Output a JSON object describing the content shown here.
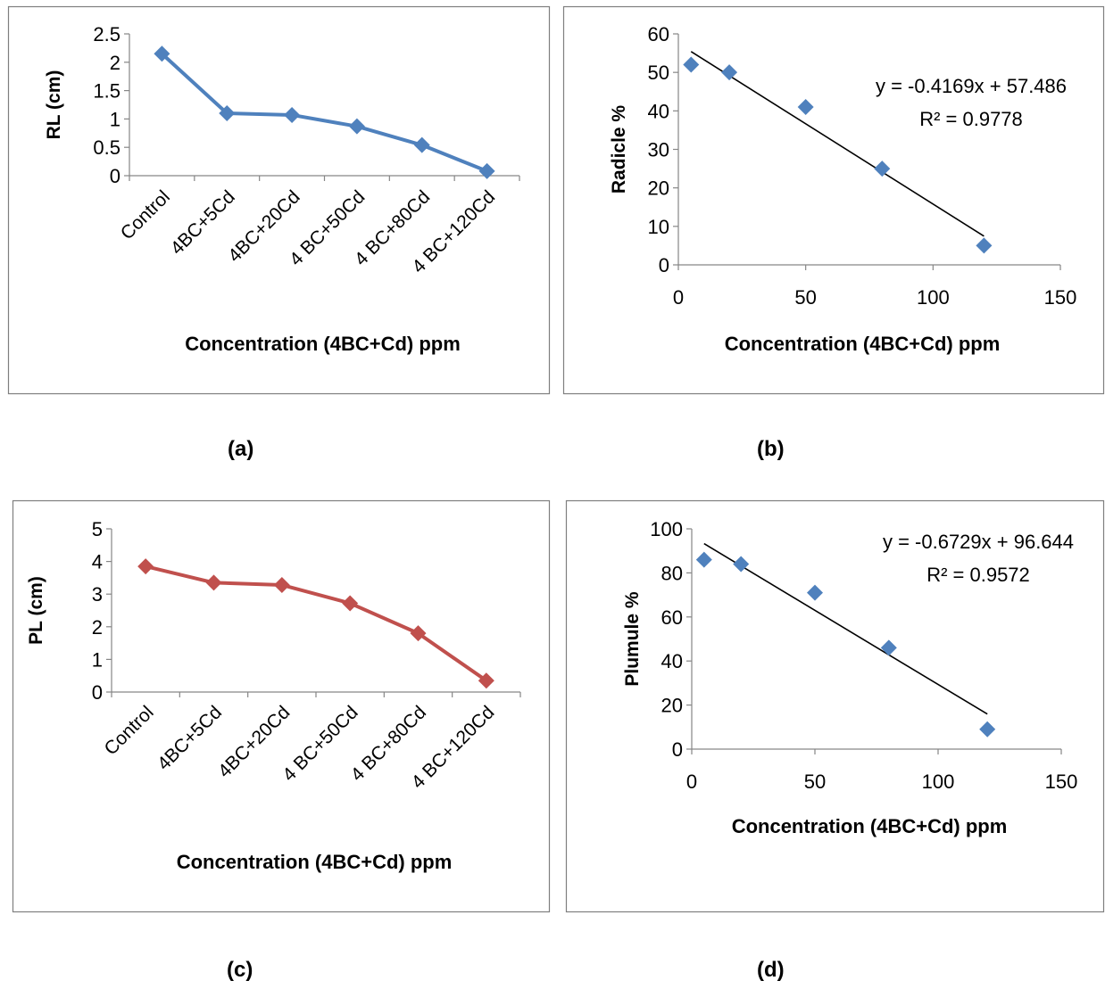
{
  "chart_data": [
    {
      "panel": "(a)",
      "type": "line",
      "categories": [
        "Control",
        "4BC+5Cd",
        "4BC+20Cd",
        "4 BC+50Cd",
        "4 BC+80Cd",
        "4 BC+120Cd"
      ],
      "series": [
        {
          "values": [
            2.15,
            1.1,
            1.07,
            0.87,
            0.54,
            0.08
          ]
        }
      ],
      "ylim": [
        0,
        2.5
      ],
      "yticks": [
        "0",
        "0.5",
        "1",
        "1.5",
        "2",
        "2.5"
      ],
      "ylabel": "RL (cm)",
      "xlabel": "Concentration  (4BC+Cd) ppm",
      "color": "#4f81bd",
      "marker": "diamond",
      "grid": false
    },
    {
      "panel": "(b)",
      "type": "scatter",
      "x": [
        5,
        20,
        50,
        80,
        120
      ],
      "y": [
        52,
        50,
        41,
        25,
        5
      ],
      "xlim": [
        0,
        150
      ],
      "xticks": [
        "0",
        "50",
        "100",
        "150"
      ],
      "ylim": [
        0,
        60
      ],
      "yticks": [
        "0",
        "10",
        "20",
        "30",
        "40",
        "50",
        "60"
      ],
      "ylabel": "Radicle %",
      "xlabel": "Concentration  (4BC+Cd) ppm",
      "trendline": {
        "slope": -0.4169,
        "intercept": 57.486,
        "x_range": [
          5,
          120
        ]
      },
      "equation": "y = -0.4169x + 57.486",
      "r_squared": "R² = 0.9778",
      "color": "#4f81bd",
      "marker": "diamond",
      "grid": false
    },
    {
      "panel": "(c)",
      "type": "line",
      "categories": [
        "Control",
        "4BC+5Cd",
        "4BC+20Cd",
        "4 BC+50Cd",
        "4 BC+80Cd",
        "4 BC+120Cd"
      ],
      "series": [
        {
          "values": [
            3.85,
            3.35,
            3.28,
            2.72,
            1.8,
            0.35
          ]
        }
      ],
      "ylim": [
        0,
        5
      ],
      "yticks": [
        "0",
        "1",
        "2",
        "3",
        "4",
        "5"
      ],
      "ylabel": "PL (cm)",
      "xlabel": "Concentration  (4BC+Cd) ppm",
      "color": "#c0504d",
      "marker": "diamond",
      "grid": false
    },
    {
      "panel": "(d)",
      "type": "scatter",
      "x": [
        5,
        20,
        50,
        80,
        120
      ],
      "y": [
        86,
        84,
        71,
        46,
        9
      ],
      "xlim": [
        0,
        150
      ],
      "xticks": [
        "0",
        "50",
        "100",
        "150"
      ],
      "ylim": [
        0,
        100
      ],
      "yticks": [
        "0",
        "20",
        "40",
        "60",
        "80",
        "100"
      ],
      "ylabel": "Plumule %",
      "xlabel": "Concentration  (4BC+Cd) ppm",
      "trendline": {
        "slope": -0.6729,
        "intercept": 96.644,
        "x_range": [
          5,
          120
        ]
      },
      "equation": "y = -0.6729x + 96.644",
      "r_squared": "R² = 0.9572",
      "color": "#4f81bd",
      "marker": "diamond",
      "grid": false
    }
  ]
}
